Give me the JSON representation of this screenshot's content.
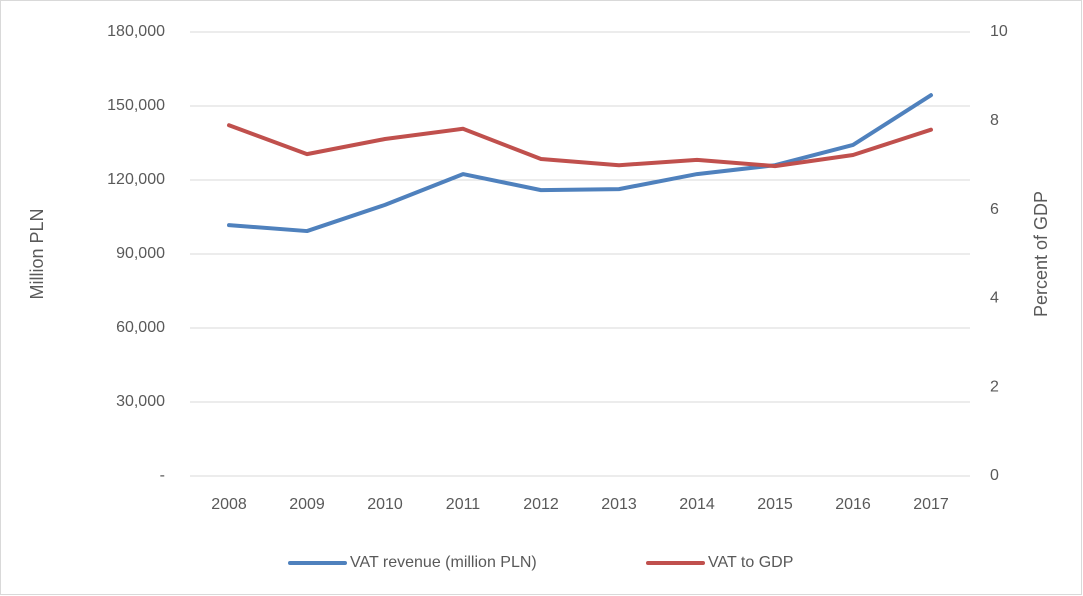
{
  "chart_data": {
    "type": "line",
    "categories": [
      "2008",
      "2009",
      "2010",
      "2011",
      "2012",
      "2013",
      "2014",
      "2015",
      "2016",
      "2017"
    ],
    "y_label": "Million PLN",
    "y2_label": "Percent of GDP",
    "ylim": [
      0,
      180000
    ],
    "yticks": [
      {
        "value": 0,
        "label": "-"
      },
      {
        "value": 30000,
        "label": "30,000"
      },
      {
        "value": 60000,
        "label": "60,000"
      },
      {
        "value": 90000,
        "label": "90,000"
      },
      {
        "value": 120000,
        "label": "120,000"
      },
      {
        "value": 150000,
        "label": "150,000"
      },
      {
        "value": 180000,
        "label": "180,000"
      }
    ],
    "y2lim": [
      0,
      10
    ],
    "y2ticks": [
      0,
      2,
      4,
      6,
      8,
      10
    ],
    "grid": true,
    "legend": "bottom",
    "series": [
      {
        "name": "VAT revenue (million PLN)",
        "color": "#4f81bd",
        "values": [
          101700,
          99300,
          109900,
          122400,
          115900,
          116300,
          122400,
          126000,
          134200,
          154400
        ]
      },
      {
        "name": "VAT to GDP",
        "color": "#c0504d",
        "axis": "y2",
        "values": [
          7.9,
          7.25,
          7.59,
          7.82,
          7.14,
          7.0,
          7.12,
          6.98,
          7.23,
          7.8
        ]
      }
    ]
  }
}
